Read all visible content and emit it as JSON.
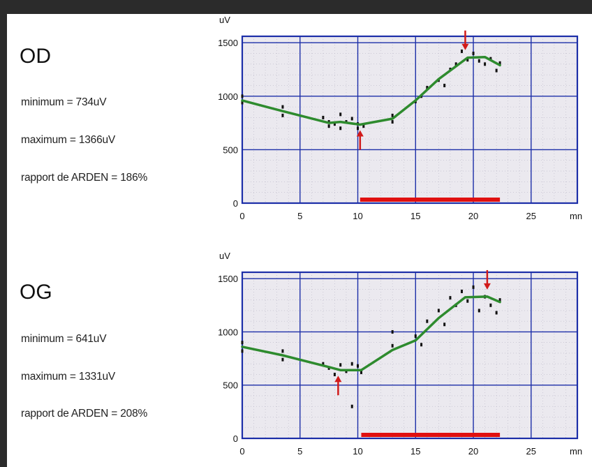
{
  "colors": {
    "plot_background": "#ebe9ef",
    "grid": "#1c2ea8",
    "curve": "#2e8b2e",
    "arrow": "#d11a1a",
    "bar": "#e01010",
    "points": "#111111"
  },
  "chart_data": [
    {
      "type": "line",
      "panel_label": "OD",
      "stats": [
        "minimum = 734uV",
        "maximum = 1366uV",
        "rapport de ARDEN = 186%"
      ],
      "ylabel": "uV",
      "xlabel": "mn",
      "xlim": [
        0,
        29
      ],
      "ylim": [
        0,
        1560
      ],
      "xticks": [
        0,
        5,
        10,
        15,
        20,
        25
      ],
      "yticks": [
        0,
        500,
        1000,
        1500
      ],
      "grid": true,
      "series": [
        {
          "x": [
            0,
            3.5,
            7.5,
            8.5,
            10.2,
            13,
            15,
            17,
            19.5,
            21,
            22.3
          ],
          "y": [
            960,
            860,
            750,
            760,
            734,
            790,
            960,
            1160,
            1360,
            1366,
            1290
          ]
        }
      ],
      "scatter": {
        "x": [
          0,
          0,
          3.5,
          3.5,
          7,
          7.5,
          7.5,
          8,
          8.5,
          8.5,
          9,
          9.5,
          10,
          10,
          10.5,
          13,
          13,
          15,
          15.5,
          16,
          17,
          17.5,
          18,
          18.5,
          19,
          19.5,
          20,
          20.5,
          21,
          21.5,
          22,
          22.3
        ],
        "y": [
          1000,
          940,
          900,
          820,
          800,
          760,
          720,
          740,
          830,
          700,
          760,
          790,
          740,
          700,
          720,
          820,
          760,
          950,
          1000,
          1080,
          1150,
          1100,
          1250,
          1300,
          1420,
          1340,
          1400,
          1330,
          1300,
          1350,
          1240,
          1310
        ]
      },
      "arrows": [
        {
          "x": 10.2,
          "y": 734,
          "direction": "up"
        },
        {
          "x": 19.3,
          "y": 1366,
          "direction": "down"
        }
      ],
      "highlight_bar": {
        "x_start": 10.2,
        "x_end": 22.3
      }
    },
    {
      "type": "line",
      "panel_label": "OG",
      "stats": [
        "minimum = 641uV",
        "maximum = 1331uV",
        "rapport de ARDEN = 208%"
      ],
      "ylabel": "uV",
      "xlabel": "mn",
      "xlim": [
        0,
        29
      ],
      "ylim": [
        0,
        1560
      ],
      "xticks": [
        0,
        5,
        10,
        15,
        20,
        25
      ],
      "yticks": [
        0,
        500,
        1000,
        1500
      ],
      "grid": true,
      "series": [
        {
          "x": [
            0,
            3.5,
            7.5,
            8.5,
            10.3,
            13,
            15,
            17,
            19.3,
            21.2,
            22.3
          ],
          "y": [
            860,
            780,
            670,
            641,
            641,
            830,
            920,
            1130,
            1325,
            1331,
            1280
          ]
        }
      ],
      "scatter": {
        "x": [
          0,
          0,
          3.5,
          3.5,
          7,
          7.5,
          8,
          8.5,
          9,
          9.5,
          9.5,
          10,
          10.3,
          13,
          13,
          15,
          15.5,
          16,
          17,
          17.5,
          18,
          18.5,
          19,
          19.5,
          20,
          20.5,
          21,
          21.5,
          22,
          22.3
        ],
        "y": [
          900,
          820,
          820,
          740,
          700,
          660,
          600,
          690,
          630,
          300,
          700,
          680,
          620,
          1000,
          870,
          960,
          880,
          1100,
          1200,
          1070,
          1320,
          1250,
          1380,
          1290,
          1420,
          1200,
          1330,
          1250,
          1180,
          1300
        ]
      },
      "arrows": [
        {
          "x": 8.3,
          "y": 641,
          "direction": "up"
        },
        {
          "x": 21.2,
          "y": 1331,
          "direction": "down"
        }
      ],
      "highlight_bar": {
        "x_start": 10.3,
        "x_end": 22.3
      }
    }
  ]
}
